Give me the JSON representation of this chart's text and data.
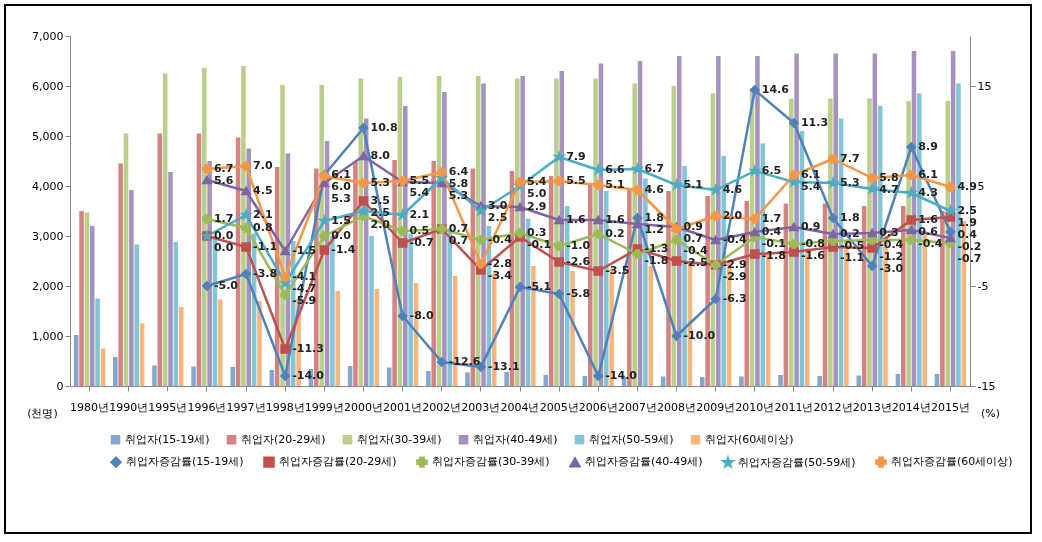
{
  "chart_data": {
    "type": "bar",
    "ylabel": "(천명)",
    "y2label": "(%)",
    "legend": "bottom",
    "categories": [
      "1980년",
      "1990년",
      "1995년",
      "1996년",
      "1997년",
      "1998년",
      "1999년",
      "2000년",
      "2001년",
      "2002년",
      "2003년",
      "2004년",
      "2005년",
      "2006년",
      "2007년",
      "2008년",
      "2009년",
      "2010년",
      "2011년",
      "2012년",
      "2013년",
      "2014년",
      "2015년"
    ],
    "ylim": [
      0,
      7000
    ],
    "yticks": [
      0,
      {
        "value": 1000,
        "label": "1,000"
      },
      {
        "value": 2000,
        "label": "2,000"
      },
      {
        "value": 3000,
        "label": "3,000"
      },
      {
        "value": 4000,
        "label": "4,000"
      },
      {
        "value": 5000,
        "label": "5,000"
      },
      {
        "value": 6000,
        "label": "6,000"
      },
      {
        "value": 7000,
        "label": "7,000"
      }
    ],
    "y2lim": [
      -15,
      20
    ],
    "y2ticks": [
      -15,
      -5,
      5,
      15
    ],
    "series": [
      {
        "name": "취업자(15-19세)",
        "type": "bar",
        "color": "#4f81bd",
        "values": [
          1020,
          580,
          410,
          390,
          380,
          320,
          340,
          400,
          370,
          300,
          270,
          280,
          220,
          200,
          180,
          190,
          180,
          190,
          220,
          200,
          210,
          240,
          240
        ]
      },
      {
        "name": "취업자(20-29세)",
        "type": "bar",
        "color": "#c0504d",
        "values": [
          3500,
          4450,
          5050,
          5050,
          4970,
          4380,
          4350,
          4480,
          4520,
          4500,
          4350,
          4300,
          4200,
          4050,
          3950,
          3900,
          3800,
          3700,
          3650,
          3650,
          3600,
          3600,
          3500
        ]
      },
      {
        "name": "취업자(30-39세)",
        "type": "bar",
        "color": "#9bbb59",
        "values": [
          3470,
          5050,
          6250,
          6360,
          6400,
          6020,
          6020,
          6150,
          6180,
          6200,
          6200,
          6150,
          6150,
          6150,
          6050,
          6000,
          5850,
          5950,
          5750,
          5750,
          5750,
          5700,
          5700
        ]
      },
      {
        "name": "취업자(40-49세)",
        "type": "bar",
        "color": "#8064a2",
        "values": [
          3200,
          3920,
          4280,
          4500,
          4750,
          4650,
          4900,
          5350,
          5600,
          5880,
          6050,
          6200,
          6300,
          6450,
          6500,
          6600,
          6600,
          6600,
          6650,
          6650,
          6650,
          6700,
          6700
        ]
      },
      {
        "name": "취업자(50-59세)",
        "type": "bar",
        "color": "#4bacc6",
        "values": [
          1750,
          2830,
          2880,
          3000,
          3050,
          2900,
          3000,
          3000,
          3050,
          3150,
          3200,
          3350,
          3600,
          3900,
          4150,
          4400,
          4600,
          4850,
          5100,
          5350,
          5600,
          5850,
          6050
        ]
      },
      {
        "name": "취업자(60세이상)",
        "type": "bar",
        "color": "#f79646",
        "values": [
          750,
          1250,
          1580,
          1730,
          1700,
          1750,
          1900,
          1940,
          2060,
          2200,
          2250,
          2400,
          2300,
          2350,
          2400,
          2500,
          2500,
          2650,
          2750,
          2900,
          3000,
          3100,
          3300
        ]
      },
      {
        "name": "취업자증감률(15-19세)",
        "type": "line",
        "axis": "y2",
        "color": "#4f81bd",
        "marker": "diamond",
        "values": [
          null,
          null,
          null,
          -5.0,
          -3.8,
          -14.0,
          6.1,
          10.8,
          -8.0,
          -12.6,
          -13.1,
          -5.1,
          -5.8,
          -14.0,
          1.8,
          -10.0,
          -6.3,
          14.6,
          11.3,
          1.8,
          -3.0,
          8.9,
          0.4
        ],
        "value_labels": [
          null,
          null,
          null,
          "-5.0",
          "-3.8",
          "-14.0",
          "6.1",
          "10.8",
          "-8.0",
          "-12.6",
          "-13.1",
          "-5.1",
          "-5.8",
          "-14.0",
          "1.8",
          "-10.0",
          "-6.3",
          "14.6",
          "11.3",
          "1.8",
          "-3.0",
          "8.9",
          "0.4"
        ]
      },
      {
        "name": "취업자증감률(20-29세)",
        "type": "line",
        "axis": "y2",
        "color": "#c0504d",
        "marker": "square",
        "values": [
          null,
          null,
          null,
          0.0,
          -1.1,
          -11.3,
          -1.4,
          3.5,
          -0.7,
          0.7,
          -3.4,
          -0.1,
          -2.6,
          -3.5,
          -1.3,
          -2.5,
          -2.9,
          -1.8,
          -1.6,
          -1.1,
          -1.2,
          1.6,
          1.9
        ],
        "value_labels": [
          null,
          null,
          null,
          "0.0",
          "-1.1",
          "-11.3",
          "-1.4",
          "3.5",
          "-0.7",
          "0.7",
          "-3.4",
          "-0.1",
          "-2.6",
          "-3.5",
          "-1.3",
          "-2.5",
          "-2.9",
          "-1.8",
          "-1.6",
          "-1.1",
          "-1.2",
          "1.6",
          "1.9"
        ]
      },
      {
        "name": "취업자증감률(30-39세)",
        "type": "line",
        "axis": "y2",
        "color": "#9bbb59",
        "marker": "cross",
        "values": [
          null,
          null,
          null,
          1.7,
          0.8,
          -5.9,
          0.0,
          2.0,
          0.5,
          0.7,
          -0.4,
          0.3,
          -1.0,
          0.2,
          -1.8,
          -0.4,
          -2.9,
          -0.1,
          -0.8,
          -0.5,
          -0.4,
          -0.4,
          -0.7
        ],
        "value_labels": [
          null,
          null,
          null,
          "1.7",
          "0.8",
          "-5.9",
          "0.0",
          "2.0",
          "0.5",
          "0.7",
          "-0.4",
          "0.3",
          "-1.0",
          "0.2",
          "-1.8",
          "-0.4",
          "-2.9",
          "-0.1",
          "-0.8",
          "-0.5",
          "-0.4",
          "-0.4",
          "-0.7"
        ]
      },
      {
        "name": "취업자증감률(40-49세)",
        "type": "line",
        "axis": "y2",
        "color": "#8064a2",
        "marker": "triangle",
        "values": [
          null,
          null,
          null,
          5.6,
          4.5,
          -1.5,
          5.3,
          8.0,
          5.4,
          5.3,
          3.0,
          2.9,
          1.6,
          1.6,
          1.2,
          0.9,
          -0.4,
          0.4,
          0.9,
          0.2,
          0.3,
          0.6,
          -0.2
        ],
        "value_labels": [
          null,
          null,
          null,
          "5.6",
          "4.5",
          "-1.5",
          "5.3",
          "8.0",
          "5.4",
          "5.3",
          "3.0",
          "2.9",
          "1.6",
          "1.6",
          "1.2",
          "0.9",
          "-0.4",
          "0.4",
          "0.9",
          "0.2",
          "0.3",
          "0.6",
          "-0.2"
        ]
      },
      {
        "name": "취업자증감률(50-59세)",
        "type": "line",
        "axis": "y2",
        "color": "#4bacc6",
        "marker": "star",
        "values": [
          null,
          null,
          null,
          0.0,
          2.1,
          -4.7,
          1.5,
          2.5,
          2.1,
          5.8,
          2.5,
          5.0,
          7.9,
          6.6,
          6.7,
          5.1,
          4.6,
          6.5,
          5.4,
          5.3,
          4.7,
          4.3,
          2.5
        ],
        "value_labels": [
          null,
          null,
          null,
          "0.0",
          "2.1",
          "-4.7",
          "1.5",
          "2.5",
          "2.1",
          "5.8",
          "2.5",
          "5.0",
          "7.9",
          "6.6",
          "6.7",
          "5.1",
          "4.6",
          "6.5",
          "5.4",
          "5.3",
          "4.7",
          "4.3",
          "2.5"
        ]
      },
      {
        "name": "취업자증감률(60세이상)",
        "type": "line",
        "axis": "y2",
        "color": "#f79646",
        "marker": "cross",
        "values": [
          null,
          null,
          null,
          6.7,
          7.0,
          -4.1,
          6.0,
          5.3,
          5.5,
          6.4,
          -2.8,
          5.4,
          5.5,
          5.1,
          4.6,
          0.7,
          2.0,
          1.7,
          6.1,
          7.7,
          5.8,
          6.1,
          4.9
        ],
        "value_labels": [
          null,
          null,
          null,
          "6.7",
          "7.0",
          "-4.1",
          "6.0",
          "5.3",
          "5.5",
          "6.4",
          "-2.8",
          "5.4",
          "5.5",
          "5.1",
          "4.6",
          "0.7",
          "2.0",
          "1.7",
          "6.1",
          "7.7",
          "5.8",
          "6.1",
          "4.9"
        ]
      }
    ]
  }
}
